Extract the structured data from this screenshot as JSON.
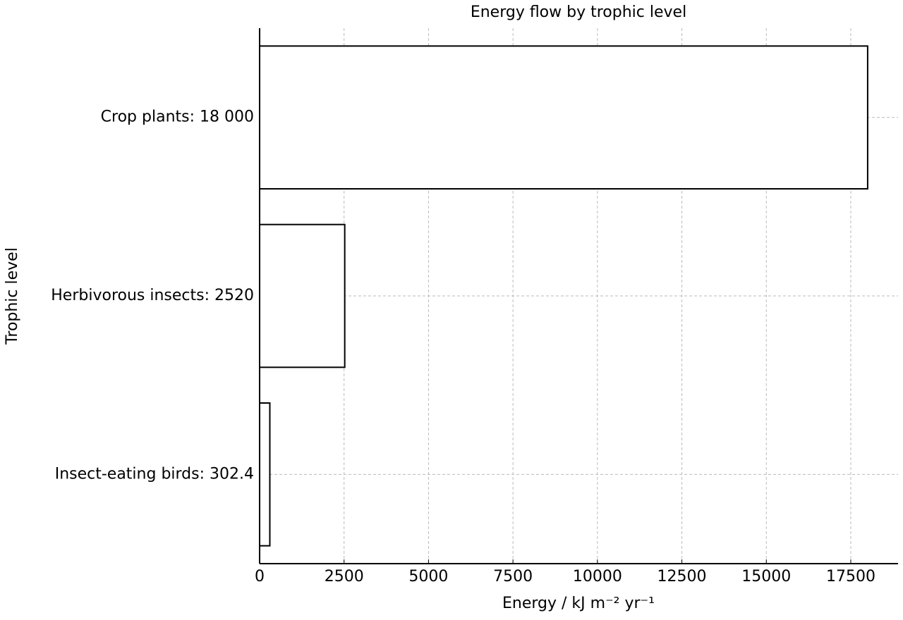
{
  "chart_data": {
    "type": "barh",
    "title": "Energy flow by trophic level",
    "categories": [
      "Crop plants: 18 000",
      "Herbivorous insects: 2520",
      "Insect-eating birds: 302.4"
    ],
    "values": [
      18000,
      2520,
      302.4
    ],
    "color": "#ffffff",
    "edgecolor": "#000000",
    "xlabel": "Energy / kJ m⁻² yr⁻¹",
    "ylabel": "Trophic level",
    "xlim": [
      0,
      18900
    ],
    "xticks": [
      0,
      2500,
      5000,
      7500,
      10000,
      12500,
      15000,
      17500
    ],
    "grid": true
  }
}
